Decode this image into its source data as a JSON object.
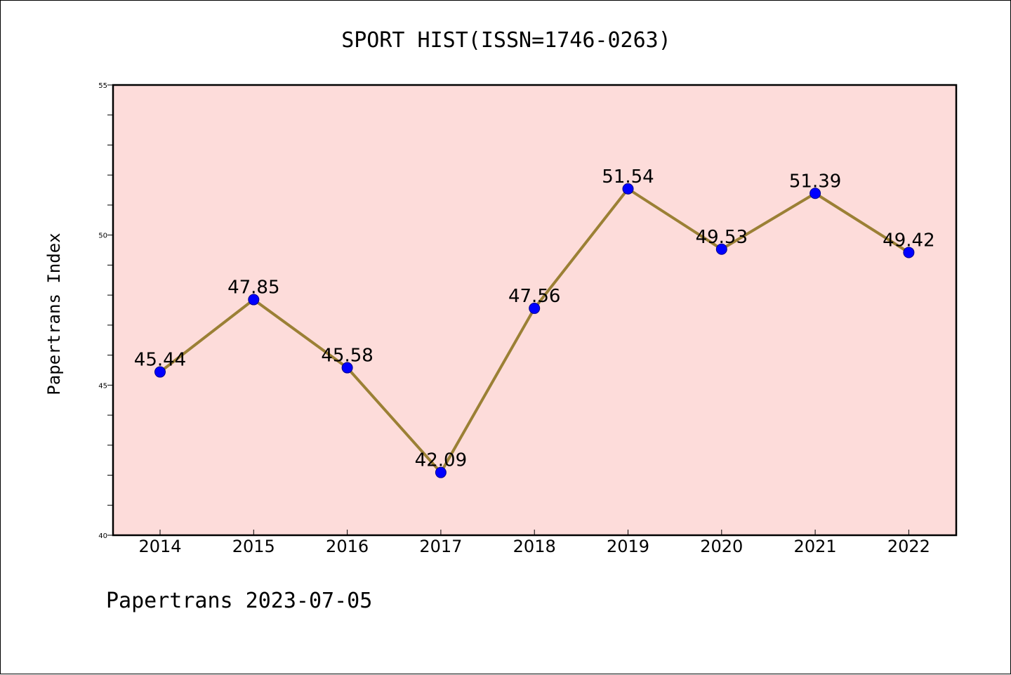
{
  "chart_data": {
    "type": "line",
    "title": "SPORT HIST(ISSN=1746-0263)",
    "xlabel": "",
    "ylabel": "Papertrans Index",
    "footer": "Papertrans 2023-07-05",
    "categories": [
      "2014",
      "2015",
      "2016",
      "2017",
      "2018",
      "2019",
      "2020",
      "2021",
      "2022"
    ],
    "series": [
      {
        "values": [
          45.44,
          47.85,
          45.58,
          42.09,
          47.56,
          51.54,
          49.53,
          51.39,
          49.42
        ],
        "labels": [
          "45.44",
          "47.85",
          "45.58",
          "42.09",
          "47.56",
          "51.54",
          "49.53",
          "51.39",
          "49.42"
        ]
      }
    ],
    "ylim": [
      40,
      55
    ],
    "yticks": [
      40,
      45,
      50,
      55
    ],
    "ytick_labels": [
      "40",
      "45",
      "50",
      "55"
    ],
    "grid": false,
    "legend": "none",
    "colors": {
      "plot_background": "#FDDCDA",
      "line": "#9B8035",
      "marker_fill": "#0000FF",
      "marker_edge": "#00008B"
    }
  }
}
